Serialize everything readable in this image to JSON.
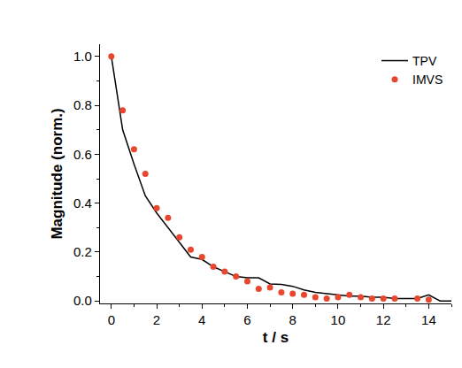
{
  "chart_data": {
    "type": "line",
    "x_label": "t / s",
    "y_label": "Magnitude (norm.)",
    "xlim": [
      -0.5,
      15
    ],
    "ylim": [
      -0.01,
      1.05
    ],
    "xticks": [
      0,
      2,
      4,
      6,
      8,
      10,
      12,
      14
    ],
    "yticks": [
      {
        "value": 0,
        "label": "0.0"
      },
      {
        "value": 0.2,
        "label": "0.2"
      },
      {
        "value": 0.4,
        "label": "0.4"
      },
      {
        "value": 0.6,
        "label": "0.6"
      },
      {
        "value": 0.8,
        "label": "0.8"
      },
      {
        "value": 1,
        "label": "1.0"
      }
    ],
    "grid": false,
    "legend": "upper right",
    "series": [
      {
        "name": "TPV",
        "type": "line",
        "color": "#000000",
        "line_style": "solid",
        "x": [
          0,
          0.5,
          1,
          1.5,
          2,
          2.5,
          3,
          3.5,
          4,
          4.5,
          5,
          5.5,
          6,
          6.5,
          7,
          7.5,
          8,
          8.5,
          9,
          9.5,
          10,
          10.5,
          11,
          11.5,
          12,
          12.5,
          13,
          13.5,
          14,
          14.5,
          15
        ],
        "values": [
          1.0,
          0.7,
          0.56,
          0.43,
          0.36,
          0.3,
          0.24,
          0.18,
          0.17,
          0.14,
          0.12,
          0.1,
          0.095,
          0.095,
          0.07,
          0.068,
          0.06,
          0.045,
          0.035,
          0.03,
          0.025,
          0.02,
          0.02,
          0.015,
          0.015,
          0.01,
          0.01,
          0.01,
          0.025,
          0.0,
          0.0
        ]
      },
      {
        "name": "IMVS",
        "type": "scatter",
        "color": "#e8472e",
        "marker": "circle",
        "x": [
          0,
          0.5,
          1,
          1.5,
          2,
          2.5,
          3,
          3.5,
          4,
          4.5,
          5,
          5.5,
          6,
          6.5,
          7,
          7.5,
          8,
          8.5,
          9,
          9.5,
          10,
          10.5,
          11,
          11.5,
          12,
          12.5,
          13.5,
          14
        ],
        "values": [
          1.0,
          0.78,
          0.62,
          0.52,
          0.38,
          0.34,
          0.26,
          0.21,
          0.18,
          0.14,
          0.12,
          0.1,
          0.08,
          0.05,
          0.055,
          0.035,
          0.03,
          0.025,
          0.015,
          0.01,
          0.015,
          0.025,
          0.015,
          0.01,
          0.01,
          0.01,
          0.01,
          0.005
        ]
      }
    ]
  }
}
